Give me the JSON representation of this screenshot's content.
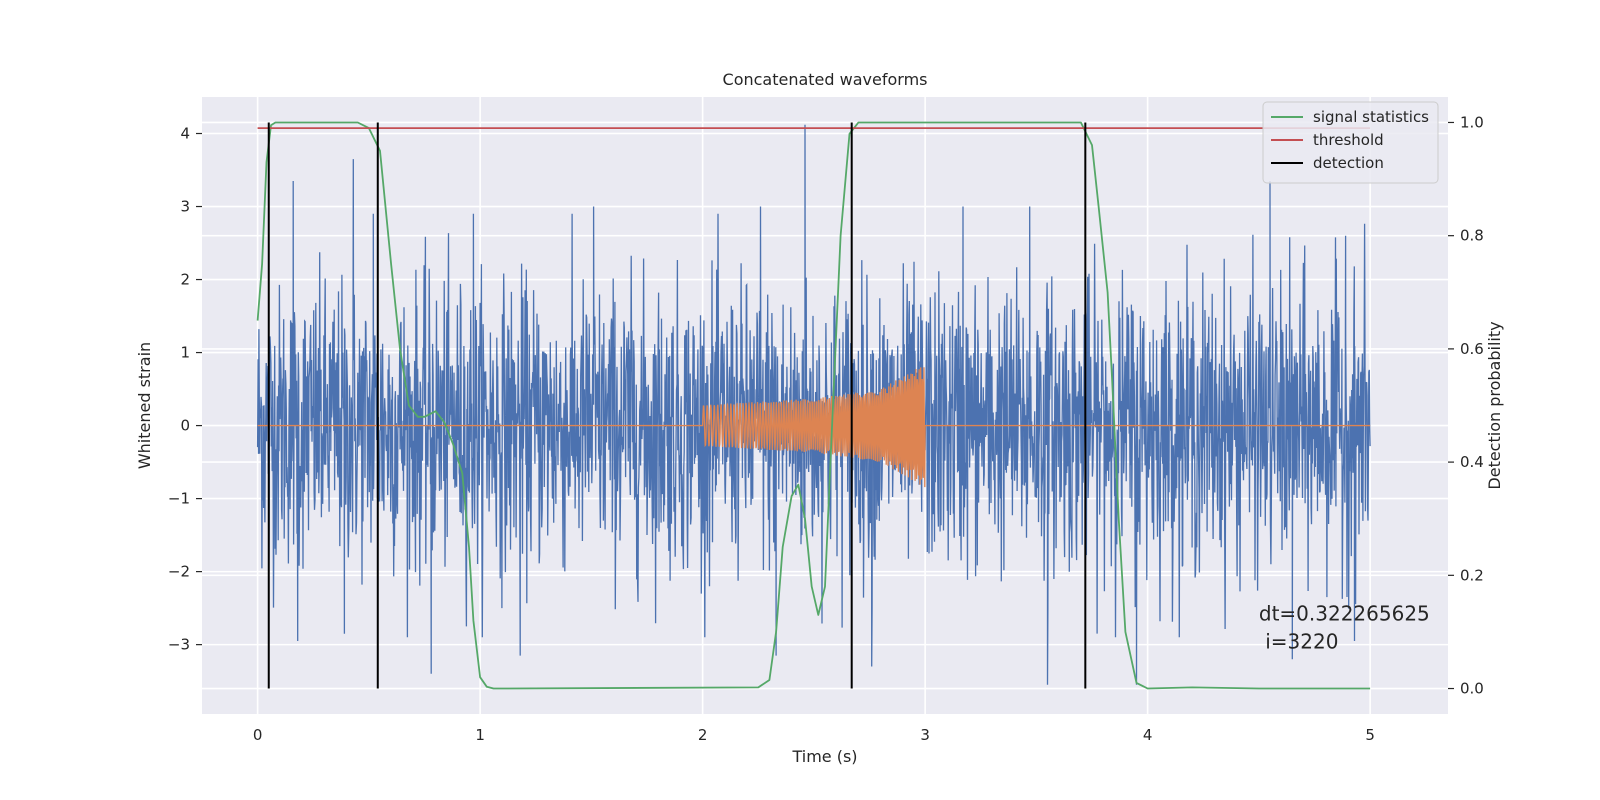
{
  "chart_data": {
    "type": "line",
    "title": "Concatenated waveforms",
    "xlabel": "Time (s)",
    "ylabel_left": "Whitened strain",
    "ylabel_right": "Detection probability",
    "xlim": [
      -0.25,
      5.35
    ],
    "ylim_left": [
      -3.95,
      4.5
    ],
    "ylim_right": [
      -0.045,
      1.045
    ],
    "x_ticks": [
      0,
      1,
      2,
      3,
      4,
      5
    ],
    "y_ticks_left": [
      -3,
      -2,
      -1,
      0,
      1,
      2,
      3,
      4
    ],
    "y_ticks_right": [
      0.0,
      0.2,
      0.4,
      0.6,
      0.8,
      1.0
    ],
    "grid": true,
    "legend_position": "top-right",
    "series": [
      {
        "name": "",
        "axis": "left",
        "color": "#4c72b0",
        "kind": "noise",
        "x_range": [
          0,
          5
        ],
        "approx_amplitude_envelope": [
          -2.5,
          2.5
        ],
        "peaks": [
          {
            "x": 0.16,
            "y": 3.35
          },
          {
            "x": 0.43,
            "y": 3.65
          },
          {
            "x": 0.52,
            "y": 2.9
          },
          {
            "x": 0.97,
            "y": 2.9
          },
          {
            "x": 1.51,
            "y": 3.0
          },
          {
            "x": 2.26,
            "y": 3.0
          },
          {
            "x": 2.46,
            "y": 4.12
          },
          {
            "x": 3.17,
            "y": 3.0
          },
          {
            "x": 3.47,
            "y": 3.0
          },
          {
            "x": 4.55,
            "y": 3.35
          },
          {
            "x": 4.89,
            "y": 2.6
          }
        ],
        "troughs": [
          {
            "x": 0.05,
            "y": -2.2
          },
          {
            "x": 0.18,
            "y": -2.95
          },
          {
            "x": 0.39,
            "y": -2.85
          },
          {
            "x": 0.78,
            "y": -3.4
          },
          {
            "x": 1.18,
            "y": -3.15
          },
          {
            "x": 2.33,
            "y": -3.15
          },
          {
            "x": 2.76,
            "y": -3.3
          },
          {
            "x": 3.55,
            "y": -3.55
          },
          {
            "x": 3.95,
            "y": -3.55
          },
          {
            "x": 4.65,
            "y": -3.2
          },
          {
            "x": 4.93,
            "y": -2.95
          }
        ]
      },
      {
        "name": "",
        "axis": "left",
        "color": "#dd8452",
        "kind": "chirp",
        "x": [
          0,
          2.0,
          2.0,
          2.5,
          2.8,
          3.0,
          3.0,
          5.0
        ],
        "amplitude": [
          0,
          0,
          0.28,
          0.37,
          0.5,
          0.85,
          0,
          0
        ]
      },
      {
        "name": "signal statistics",
        "axis": "right",
        "color": "#55a868",
        "x": [
          0,
          0.02,
          0.04,
          0.06,
          0.08,
          0.1,
          0.45,
          0.5,
          0.55,
          0.6,
          0.64,
          0.68,
          0.72,
          0.75,
          0.8,
          0.84,
          0.88,
          0.92,
          0.95,
          0.97,
          1.0,
          1.03,
          1.06,
          1.1,
          2.25,
          2.3,
          2.33,
          2.36,
          2.4,
          2.43,
          2.46,
          2.49,
          2.52,
          2.55,
          2.58,
          2.62,
          2.66,
          2.7,
          2.75,
          3.7,
          3.75,
          3.78,
          3.82,
          3.84,
          3.87,
          3.9,
          3.95,
          4.0,
          4.2,
          4.5,
          5.0
        ],
        "y": [
          0.65,
          0.75,
          0.93,
          0.995,
          1.0,
          1.0,
          1.0,
          0.99,
          0.95,
          0.75,
          0.6,
          0.5,
          0.48,
          0.48,
          0.49,
          0.47,
          0.43,
          0.38,
          0.25,
          0.12,
          0.02,
          0.003,
          0.0,
          0.0,
          0.002,
          0.015,
          0.1,
          0.25,
          0.34,
          0.36,
          0.3,
          0.18,
          0.13,
          0.18,
          0.45,
          0.8,
          0.98,
          1.0,
          1.0,
          1.0,
          0.96,
          0.85,
          0.7,
          0.55,
          0.3,
          0.1,
          0.01,
          0.0,
          0.002,
          0.0,
          0.0
        ]
      },
      {
        "name": "threshold",
        "axis": "right",
        "color": "#c44e52",
        "x": [
          0,
          5
        ],
        "y": [
          0.99,
          0.99
        ]
      },
      {
        "name": "detection",
        "axis": "right",
        "color": "#000000",
        "kind": "vertical_lines",
        "x": [
          0.05,
          0.54,
          2.67,
          3.72
        ],
        "y_range": [
          0.0,
          1.0
        ]
      }
    ],
    "annotation": {
      "line1": "dt=0.322265625",
      "line2": " i=3220",
      "x": 4.5,
      "y_right": 0.11
    }
  }
}
